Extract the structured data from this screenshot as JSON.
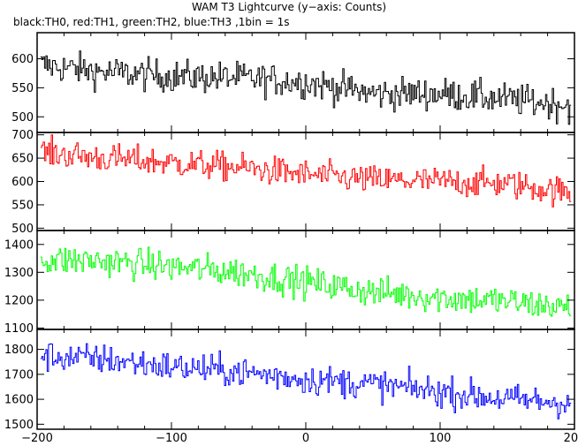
{
  "title": "WAM T3 Lightcurve (y−axis: Counts)",
  "subtitle": "black:TH0, red:TH1, green:TH2, blue:TH3 ,1bin = 1s",
  "chart_data": {
    "type": "line",
    "title": "WAM T3 Lightcurve (y−axis: Counts)",
    "subtitle": "black:TH0, red:TH1, green:TH2, blue:TH3 ,1bin = 1s",
    "xlabel": "",
    "ylabel": "Counts",
    "xlim": [
      -200,
      200
    ],
    "x_ticks": [
      -200,
      -100,
      0,
      100,
      200
    ],
    "x_tick_labels": [
      "−200",
      "−100",
      "0",
      "100",
      "200"
    ],
    "bin_size_s": 1,
    "panels": [
      {
        "name": "TH0",
        "color": "#000000",
        "ylim": [
          473,
          645
        ],
        "y_ticks": [
          500,
          550,
          600
        ],
        "trend": {
          "x": [
            -200,
            -150,
            -100,
            -50,
            0,
            50,
            100,
            150,
            200
          ],
          "y": [
            590,
            577,
            570,
            567,
            560,
            540,
            540,
            530,
            520
          ]
        },
        "noise_amplitude": 25
      },
      {
        "name": "TH1",
        "color": "#ff0000",
        "ylim": [
          495,
          705
        ],
        "y_ticks": [
          500,
          550,
          600,
          650,
          700
        ],
        "trend": {
          "x": [
            -200,
            -150,
            -100,
            -50,
            0,
            50,
            100,
            150,
            200
          ],
          "y": [
            663,
            650,
            640,
            630,
            615,
            603,
            600,
            595,
            575
          ]
        },
        "noise_amplitude": 28
      },
      {
        "name": "TH2",
        "color": "#00ff00",
        "ylim": [
          1095,
          1450
        ],
        "y_ticks": [
          1100,
          1200,
          1300,
          1400
        ],
        "trend": {
          "x": [
            -200,
            -150,
            -100,
            -50,
            0,
            50,
            100,
            150,
            200
          ],
          "y": [
            1345,
            1340,
            1320,
            1300,
            1265,
            1230,
            1210,
            1195,
            1170
          ]
        },
        "noise_amplitude": 50
      },
      {
        "name": "TH3",
        "color": "#0000ff",
        "ylim": [
          1480,
          1880
        ],
        "y_ticks": [
          1500,
          1600,
          1700,
          1800
        ],
        "trend": {
          "x": [
            -200,
            -150,
            -100,
            -50,
            0,
            50,
            100,
            150,
            200
          ],
          "y": [
            1775,
            1760,
            1730,
            1710,
            1680,
            1660,
            1630,
            1600,
            1585
          ]
        },
        "noise_amplitude": 55
      }
    ]
  }
}
